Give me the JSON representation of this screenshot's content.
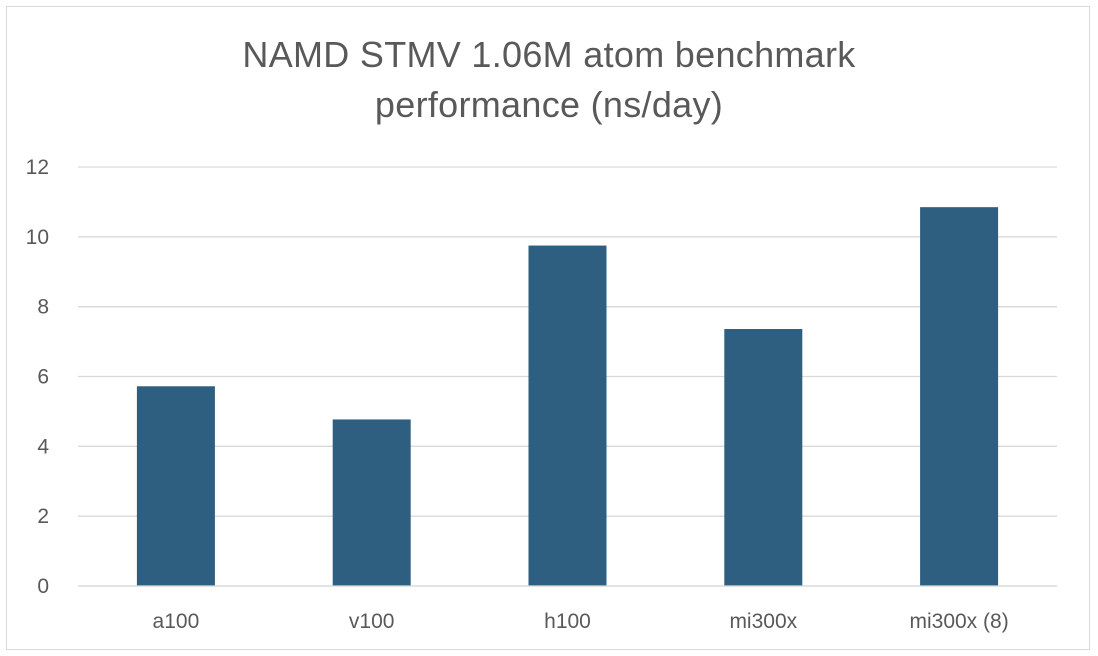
{
  "chart_data": {
    "type": "bar",
    "title_lines": [
      "NAMD STMV 1.06M atom benchmark",
      "performance (ns/day)"
    ],
    "categories": [
      "a100",
      "v100",
      "h100",
      "mi300x",
      "mi300x (8)"
    ],
    "values": [
      5.72,
      4.77,
      9.75,
      7.36,
      10.85
    ],
    "ylim": [
      0,
      12
    ],
    "yticks": [
      0,
      2,
      4,
      6,
      8,
      10,
      12
    ],
    "grid": true,
    "legend": "none",
    "xlabel": "",
    "ylabel": ""
  },
  "colors": {
    "bar": "#2e5f80",
    "grid": "#d9d9d9",
    "text": "#595959"
  }
}
